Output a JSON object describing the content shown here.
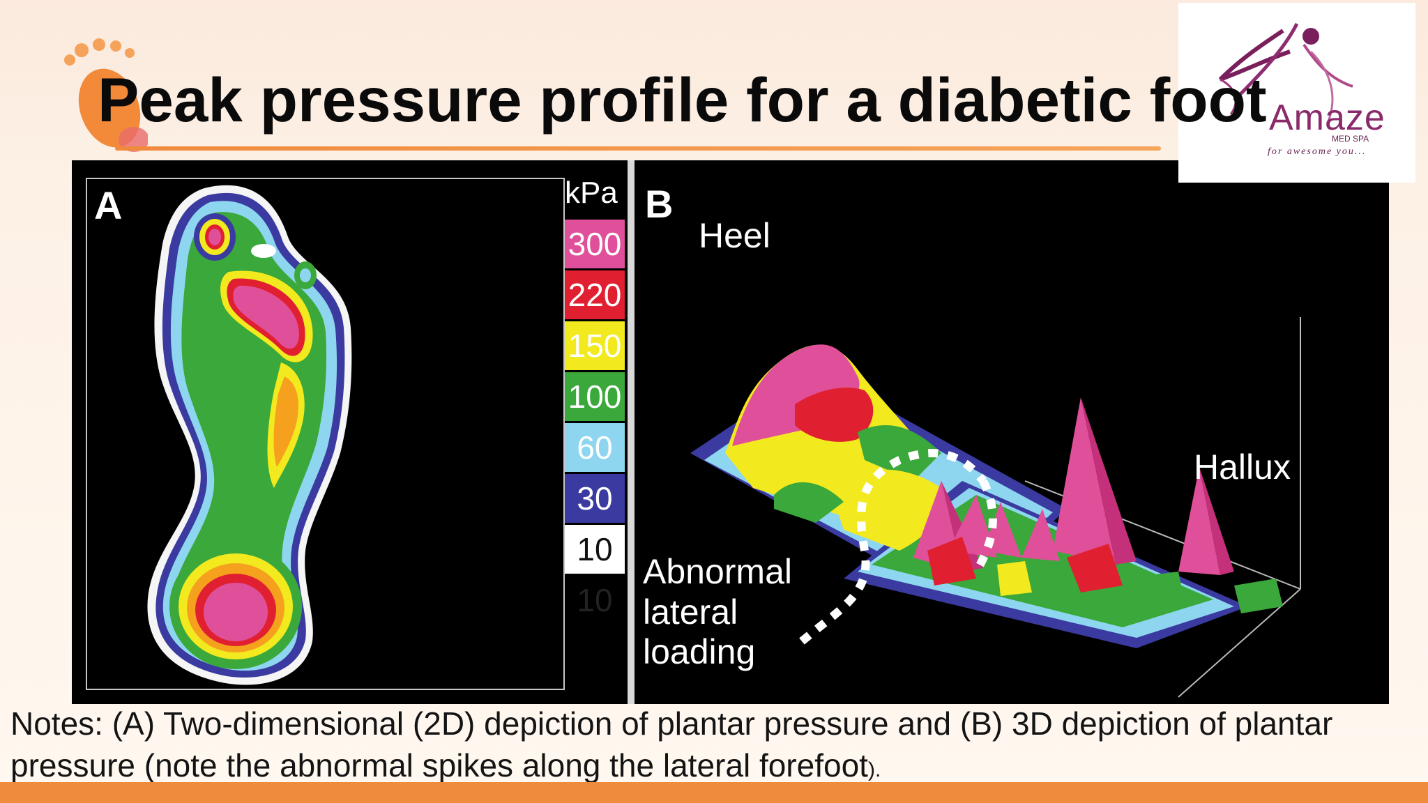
{
  "slide": {
    "title": "Peak pressure profile for a diabetic foot"
  },
  "logo": {
    "name": "Amaze",
    "subtitle": "MED SPA",
    "tagline": "for awesome you..."
  },
  "figure": {
    "panel_a": {
      "letter": "A",
      "unit": "kPa",
      "scale": [
        {
          "label": "300",
          "color": "#e0509a"
        },
        {
          "label": "220",
          "color": "#e02030"
        },
        {
          "label": "150",
          "color": "#f2ea1e"
        },
        {
          "label": "100",
          "color": "#3aa83a"
        },
        {
          "label": "60",
          "color": "#8ed6ef"
        },
        {
          "label": "30",
          "color": "#3a3aa0"
        },
        {
          "label": "10",
          "color": "#ffffff"
        },
        {
          "label": "10",
          "color": "#000000"
        }
      ]
    },
    "panel_b": {
      "letter": "B",
      "heel_label": "Heel",
      "hallux_label": "Hallux",
      "lateral_label": [
        "Abnormal",
        "lateral",
        "loading"
      ]
    }
  },
  "notes": {
    "text": "Notes: (A) Two-dimensional (2D) depiction of plantar pressure and (B) 3D depiction of plantar pressure (note the abnormal spikes along the lateral forefoot",
    "end": ")."
  }
}
